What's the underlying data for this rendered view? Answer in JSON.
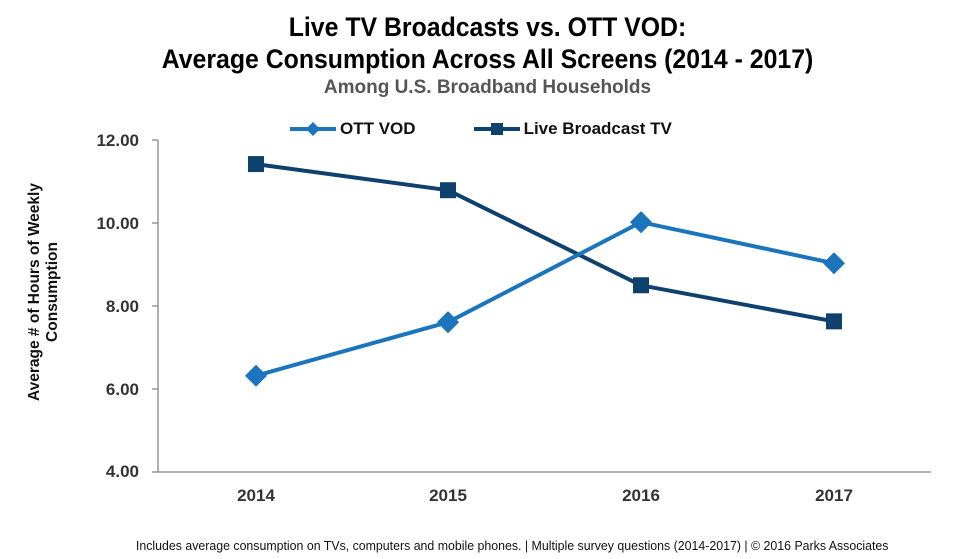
{
  "title": {
    "line1": "Live TV Broadcasts vs. OTT VOD:",
    "line2": "Average Consumption Across All Screens (2014 - 2017)",
    "subtitle": "Among U.S. Broadband Households"
  },
  "legend": [
    {
      "label": "OTT VOD",
      "marker": "diamond",
      "color": "#1B75BC"
    },
    {
      "label": "Live Broadcast TV",
      "marker": "square",
      "color": "#0F416E"
    }
  ],
  "axes": {
    "ylabel": "Average # of Hours of Weekly Consumption",
    "yticks": [
      "12.00",
      "10.00",
      "8.00",
      "6.00",
      "4.00"
    ],
    "xticks": [
      "2014",
      "2015",
      "2016",
      "2017"
    ]
  },
  "footer": "Includes average consumption on TVs, computers and mobile phones.  | Multiple  survey questions (2014-2017) | © 2016 Parks Associates",
  "chart_data": {
    "type": "line",
    "title": "Live TV Broadcasts vs. OTT VOD: Average Consumption Across All Screens (2014 - 2017)",
    "subtitle": "Among U.S. Broadband Households",
    "categories": [
      "2014",
      "2015",
      "2016",
      "2017"
    ],
    "series": [
      {
        "name": "OTT VOD",
        "color": "#1B75BC",
        "marker": "diamond",
        "values": [
          6.32,
          7.61,
          10.02,
          9.03
        ]
      },
      {
        "name": "Live Broadcast TV",
        "color": "#0F416E",
        "marker": "square",
        "values": [
          11.42,
          10.79,
          8.5,
          7.63
        ]
      }
    ],
    "xlabel": "",
    "ylabel": "Average # of Hours of Weekly Consumption",
    "ylim": [
      4,
      12
    ],
    "yticks": [
      4,
      6,
      8,
      10,
      12
    ],
    "grid": false,
    "legend_position": "top"
  }
}
